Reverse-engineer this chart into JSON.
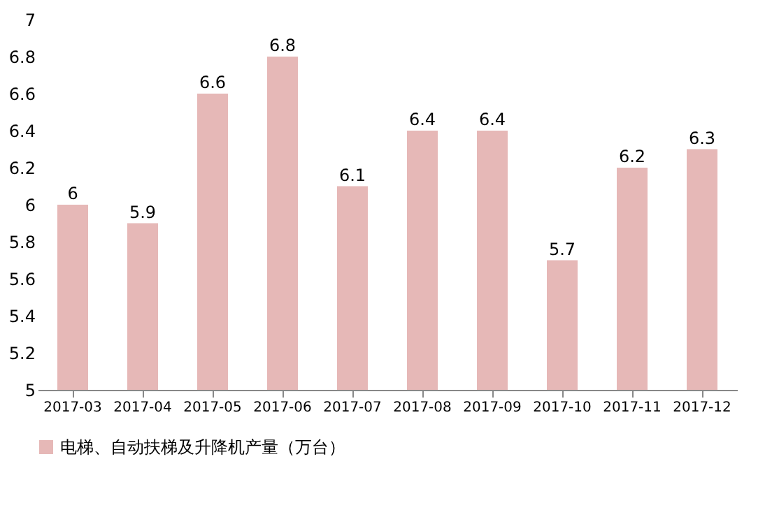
{
  "chart_data": {
    "type": "bar",
    "categories": [
      "2017-03",
      "2017-04",
      "2017-05",
      "2017-06",
      "2017-07",
      "2017-08",
      "2017-09",
      "2017-10",
      "2017-11",
      "2017-12"
    ],
    "series": [
      {
        "name": "电梯、自动扶梯及升降机产量（万台）",
        "color": "#e6b8b7",
        "values": [
          6,
          5.9,
          6.6,
          6.8,
          6.1,
          6.4,
          6.4,
          5.7,
          6.2,
          6.3
        ]
      }
    ],
    "ylim": [
      5,
      7
    ],
    "yticks": [
      5,
      5.2,
      5.4,
      5.6,
      5.8,
      6,
      6.2,
      6.4,
      6.6,
      6.8,
      7
    ],
    "data_labels": true,
    "grid": false,
    "legend": "bottom"
  }
}
